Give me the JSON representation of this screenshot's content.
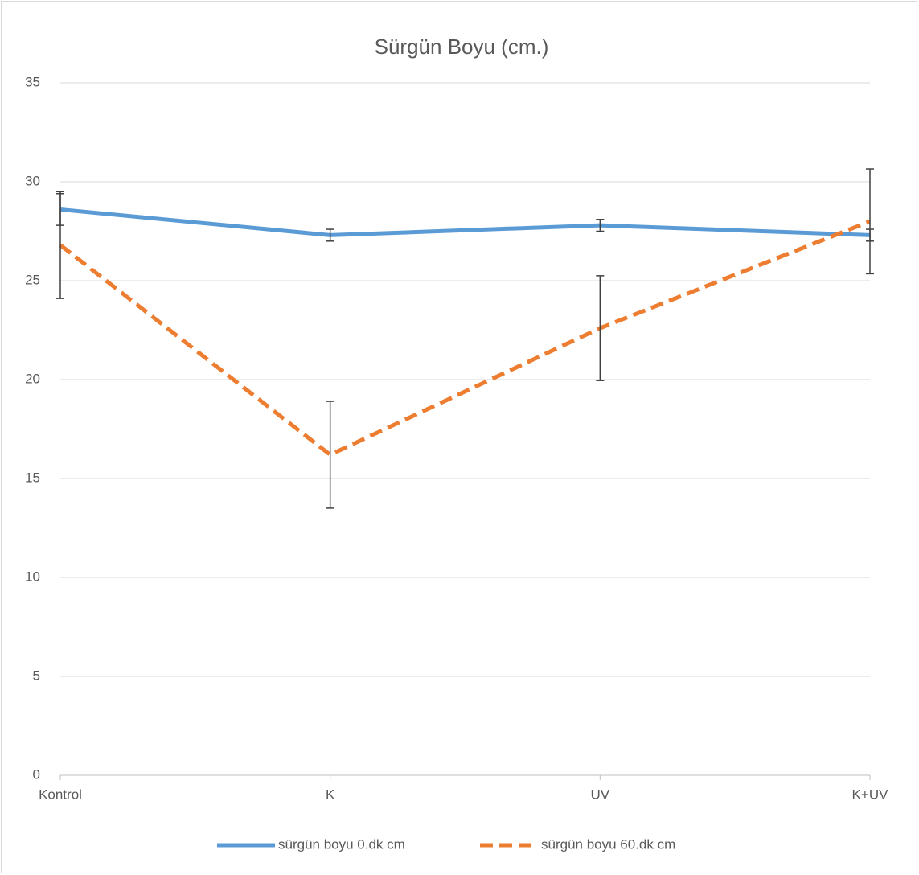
{
  "chart_data": {
    "type": "line",
    "title": "Sürgün Boyu (cm.)",
    "categories": [
      "Kontrol",
      "K",
      "UV",
      "K+UV"
    ],
    "series": [
      {
        "name": "sürgün boyu 0.dk cm",
        "color": "#5b9bd5",
        "dash": false,
        "values": [
          28.6,
          27.3,
          27.8,
          27.3
        ],
        "errors": [
          0.8,
          0.3,
          0.3,
          0.3
        ]
      },
      {
        "name": "sürgün boyu 60.dk cm",
        "color": "#ed7d31",
        "dash": true,
        "values": [
          26.8,
          16.2,
          22.6,
          28.0
        ],
        "errors": [
          2.7,
          2.7,
          2.65,
          2.65
        ]
      }
    ],
    "ylim": [
      0,
      35
    ],
    "yticks": [
      0,
      5,
      10,
      15,
      20,
      25,
      30,
      35
    ],
    "grid": true,
    "legend": "bottom"
  }
}
